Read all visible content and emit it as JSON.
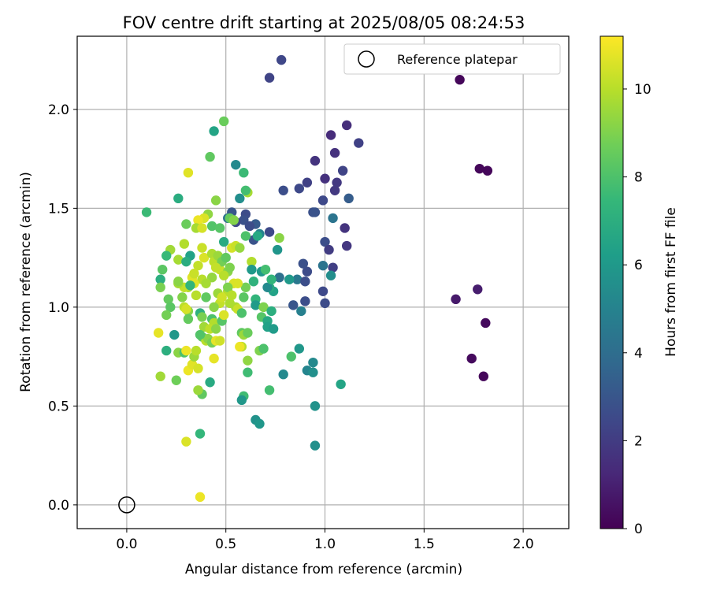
{
  "chart_data": {
    "type": "scatter",
    "title": "FOV centre drift starting at 2025/08/05 08:24:53",
    "xlabel": "Angular distance from reference (arcmin)",
    "ylabel": "Rotation from reference (arcmin)",
    "xlim": [
      -0.25,
      2.23
    ],
    "ylim": [
      -0.12,
      2.37
    ],
    "xticks": [
      "0.0",
      "0.5",
      "1.0",
      "1.5",
      "2.0"
    ],
    "xtick_values": [
      0.0,
      0.5,
      1.0,
      1.5,
      2.0
    ],
    "yticks": [
      "0.0",
      "0.5",
      "1.0",
      "1.5",
      "2.0"
    ],
    "ytick_values": [
      0.0,
      0.5,
      1.0,
      1.5,
      2.0
    ],
    "grid": true,
    "legend_position": "top-right",
    "legend": {
      "label": "Reference platepar"
    },
    "reference_point": {
      "x": 0.0,
      "y": 0.0
    },
    "colorbar": {
      "label": "Hours from first FF file",
      "colormap": "viridis",
      "min": 0,
      "max": 11.2,
      "ticks": [
        "0",
        "2",
        "4",
        "6",
        "8",
        "10"
      ],
      "tick_values": [
        0,
        2,
        4,
        6,
        8,
        10
      ]
    },
    "colormap_stops": [
      "#440154",
      "#482878",
      "#3e4989",
      "#31688e",
      "#26828e",
      "#1f9e89",
      "#35b779",
      "#6ece58",
      "#b5de2b",
      "#fde725"
    ],
    "points": [
      [
        1.68,
        2.15,
        0.2
      ],
      [
        1.78,
        1.7,
        0.2
      ],
      [
        1.82,
        1.69,
        0.2
      ],
      [
        1.74,
        0.74,
        0.3
      ],
      [
        1.8,
        0.65,
        0.2
      ],
      [
        1.81,
        0.92,
        0.3
      ],
      [
        1.66,
        1.04,
        0.8
      ],
      [
        1.77,
        1.09,
        0.9
      ],
      [
        0.78,
        2.25,
        2.4
      ],
      [
        0.72,
        2.16,
        2.3
      ],
      [
        1.11,
        1.92,
        1.5
      ],
      [
        1.17,
        1.83,
        2.2
      ],
      [
        1.03,
        1.87,
        1.4
      ],
      [
        1.05,
        1.78,
        1.6
      ],
      [
        0.95,
        1.74,
        1.7
      ],
      [
        1.09,
        1.69,
        2.3
      ],
      [
        1.0,
        1.65,
        1.6
      ],
      [
        0.91,
        1.63,
        2.2
      ],
      [
        0.87,
        1.6,
        2.5
      ],
      [
        0.79,
        1.59,
        2.7
      ],
      [
        1.06,
        1.63,
        1.9
      ],
      [
        1.05,
        1.59,
        1.9
      ],
      [
        1.12,
        1.55,
        3.3
      ],
      [
        0.99,
        1.54,
        2.5
      ],
      [
        0.94,
        1.48,
        2.8
      ],
      [
        0.95,
        1.48,
        2.9
      ],
      [
        1.1,
        1.4,
        1.7
      ],
      [
        1.04,
        1.45,
        4.3
      ],
      [
        1.0,
        1.33,
        2.7
      ],
      [
        1.02,
        1.29,
        2.0
      ],
      [
        1.11,
        1.31,
        1.8
      ],
      [
        1.04,
        1.2,
        2.1
      ],
      [
        0.99,
        1.21,
        4.3
      ],
      [
        0.91,
        1.18,
        2.6
      ],
      [
        0.89,
        1.22,
        2.8
      ],
      [
        1.03,
        1.16,
        5.5
      ],
      [
        0.86,
        1.14,
        4.5
      ],
      [
        0.9,
        1.13,
        2.7
      ],
      [
        0.82,
        1.14,
        6.0
      ],
      [
        0.99,
        1.08,
        2.5
      ],
      [
        1.0,
        1.02,
        2.6
      ],
      [
        0.9,
        1.03,
        2.7
      ],
      [
        0.84,
        1.01,
        3.0
      ],
      [
        0.88,
        0.98,
        4.9
      ],
      [
        0.77,
        1.15,
        4.1
      ],
      [
        0.74,
        1.08,
        6.4
      ],
      [
        0.72,
        1.1,
        6.9
      ],
      [
        0.71,
        1.1,
        5.3
      ],
      [
        0.72,
        1.38,
        2.5
      ],
      [
        0.76,
        1.29,
        5.8
      ],
      [
        0.67,
        1.37,
        5.0
      ],
      [
        0.65,
        1.42,
        3.2
      ],
      [
        0.64,
        1.34,
        2.9
      ],
      [
        0.6,
        1.47,
        2.6
      ],
      [
        0.59,
        1.44,
        2.8
      ],
      [
        0.62,
        1.41,
        2.6
      ],
      [
        0.53,
        1.48,
        3.0
      ],
      [
        0.55,
        1.43,
        2.4
      ],
      [
        0.51,
        1.45,
        4.2
      ],
      [
        0.57,
        1.55,
        5.5
      ],
      [
        0.55,
        1.72,
        5.3
      ],
      [
        0.59,
        1.68,
        7.6
      ],
      [
        0.61,
        1.58,
        9.7
      ],
      [
        0.6,
        1.59,
        7.8
      ],
      [
        0.49,
        1.94,
        8.6
      ],
      [
        0.44,
        1.89,
        6.5
      ],
      [
        0.42,
        1.76,
        8.4
      ],
      [
        0.31,
        1.68,
        10.7
      ],
      [
        0.26,
        1.55,
        6.9
      ],
      [
        0.1,
        1.48,
        7.6
      ],
      [
        0.45,
        1.54,
        9.2
      ],
      [
        0.41,
        1.47,
        9.3
      ],
      [
        0.39,
        1.45,
        10.6
      ],
      [
        0.36,
        1.44,
        10.9
      ],
      [
        0.3,
        1.42,
        8.6
      ],
      [
        0.35,
        1.4,
        9.7
      ],
      [
        0.38,
        1.4,
        10.5
      ],
      [
        0.43,
        1.41,
        8.1
      ],
      [
        0.47,
        1.4,
        8.2
      ],
      [
        0.52,
        1.45,
        8.5
      ],
      [
        0.54,
        1.44,
        9.1
      ],
      [
        0.49,
        1.33,
        6.8
      ],
      [
        0.6,
        1.36,
        8.0
      ],
      [
        0.66,
        1.36,
        6.7
      ],
      [
        0.68,
        1.18,
        6.0
      ],
      [
        0.7,
        1.19,
        7.8
      ],
      [
        0.77,
        1.35,
        9.2
      ],
      [
        0.73,
        1.14,
        7.3
      ],
      [
        0.22,
        1.29,
        9.6
      ],
      [
        0.26,
        1.24,
        9.7
      ],
      [
        0.29,
        1.32,
        9.9
      ],
      [
        0.2,
        1.26,
        7.5
      ],
      [
        0.32,
        1.26,
        6.4
      ],
      [
        0.3,
        1.23,
        6.9
      ],
      [
        0.36,
        1.21,
        10.2
      ],
      [
        0.38,
        1.3,
        10.3
      ],
      [
        0.39,
        1.25,
        10.6
      ],
      [
        0.43,
        1.27,
        9.8
      ],
      [
        0.44,
        1.23,
        10.1
      ],
      [
        0.46,
        1.26,
        9.5
      ],
      [
        0.47,
        1.19,
        10.3
      ],
      [
        0.48,
        1.23,
        8.8
      ],
      [
        0.51,
        1.18,
        9.2
      ],
      [
        0.49,
        1.16,
        10.0
      ],
      [
        0.53,
        1.3,
        10.5
      ],
      [
        0.55,
        1.31,
        10.3
      ],
      [
        0.57,
        1.3,
        9.4
      ],
      [
        0.63,
        1.23,
        9.9
      ],
      [
        0.63,
        1.19,
        6.0
      ],
      [
        0.64,
        1.13,
        7.2
      ],
      [
        0.6,
        1.1,
        8.8
      ],
      [
        0.54,
        1.12,
        10.6
      ],
      [
        0.56,
        1.12,
        10.6
      ],
      [
        0.51,
        1.08,
        10.0
      ],
      [
        0.52,
        1.02,
        9.8
      ],
      [
        0.46,
        1.07,
        9.5
      ],
      [
        0.47,
        1.02,
        10.2
      ],
      [
        0.44,
        1.0,
        9.2
      ],
      [
        0.4,
        1.05,
        8.4
      ],
      [
        0.38,
        1.14,
        10.0
      ],
      [
        0.33,
        1.15,
        10.7
      ],
      [
        0.34,
        1.12,
        10.7
      ],
      [
        0.31,
        1.1,
        9.9
      ],
      [
        0.29,
        1.1,
        10.2
      ],
      [
        0.26,
        1.12,
        9.7
      ],
      [
        0.28,
        1.05,
        9.1
      ],
      [
        0.32,
        1.11,
        7.3
      ],
      [
        0.35,
        1.06,
        10.0
      ],
      [
        0.18,
        1.19,
        8.3
      ],
      [
        0.17,
        1.14,
        7.0
      ],
      [
        0.17,
        1.1,
        8.9
      ],
      [
        0.21,
        1.04,
        8.5
      ],
      [
        0.22,
        1.0,
        8.3
      ],
      [
        0.2,
        0.96,
        8.8
      ],
      [
        0.29,
        1.0,
        10.1
      ],
      [
        0.31,
        0.98,
        9.2
      ],
      [
        0.31,
        0.94,
        8.5
      ],
      [
        0.3,
        0.99,
        10.5
      ],
      [
        0.37,
        0.97,
        7.1
      ],
      [
        0.38,
        0.95,
        8.9
      ],
      [
        0.39,
        0.9,
        9.6
      ],
      [
        0.43,
        0.94,
        8.0
      ],
      [
        0.44,
        0.92,
        9.9
      ],
      [
        0.42,
        0.89,
        10.1
      ],
      [
        0.45,
        0.89,
        9.2
      ],
      [
        0.48,
        0.93,
        8.2
      ],
      [
        0.49,
        0.96,
        10.6
      ],
      [
        0.55,
        1.0,
        9.8
      ],
      [
        0.56,
        0.99,
        10.3
      ],
      [
        0.58,
        0.97,
        8.0
      ],
      [
        0.59,
        1.05,
        8.3
      ],
      [
        0.65,
        1.04,
        7.3
      ],
      [
        0.65,
        1.01,
        6.1
      ],
      [
        0.68,
        0.95,
        8.2
      ],
      [
        0.69,
        1.0,
        9.0
      ],
      [
        0.71,
        0.93,
        6.7
      ],
      [
        0.73,
        0.98,
        7.0
      ],
      [
        0.71,
        0.9,
        6.4
      ],
      [
        0.74,
        0.89,
        6.1
      ],
      [
        0.58,
        0.87,
        8.4
      ],
      [
        0.59,
        0.86,
        9.5
      ],
      [
        0.61,
        0.87,
        8.6
      ],
      [
        0.58,
        0.8,
        10.0
      ],
      [
        0.57,
        0.8,
        10.9
      ],
      [
        0.61,
        0.73,
        9.3
      ],
      [
        0.61,
        0.67,
        7.7
      ],
      [
        0.67,
        0.78,
        9.0
      ],
      [
        0.69,
        0.79,
        8.0
      ],
      [
        0.83,
        0.75,
        8.0
      ],
      [
        0.87,
        0.79,
        5.9
      ],
      [
        0.91,
        0.68,
        5.1
      ],
      [
        0.94,
        0.67,
        5.6
      ],
      [
        0.94,
        0.72,
        5.3
      ],
      [
        1.08,
        0.61,
        6.5
      ],
      [
        0.79,
        0.66,
        5.3
      ],
      [
        0.72,
        0.58,
        7.8
      ],
      [
        0.59,
        0.55,
        7.7
      ],
      [
        0.58,
        0.53,
        5.9
      ],
      [
        0.65,
        0.43,
        5.7
      ],
      [
        0.67,
        0.41,
        5.9
      ],
      [
        0.95,
        0.5,
        5.7
      ],
      [
        0.95,
        0.3,
        5.6
      ],
      [
        0.37,
        0.36,
        7.4
      ],
      [
        0.38,
        0.56,
        8.4
      ],
      [
        0.36,
        0.58,
        9.5
      ],
      [
        0.31,
        0.68,
        10.9
      ],
      [
        0.33,
        0.71,
        10.7
      ],
      [
        0.36,
        0.69,
        10.5
      ],
      [
        0.34,
        0.75,
        9.5
      ],
      [
        0.42,
        0.62,
        6.8
      ],
      [
        0.44,
        0.74,
        10.8
      ],
      [
        0.38,
        0.85,
        8.4
      ],
      [
        0.4,
        0.83,
        10.0
      ],
      [
        0.41,
        0.84,
        9.2
      ],
      [
        0.43,
        0.82,
        8.8
      ],
      [
        0.45,
        0.83,
        10.8
      ],
      [
        0.47,
        0.83,
        10.4
      ],
      [
        0.37,
        0.86,
        8.1
      ],
      [
        0.24,
        0.86,
        5.9
      ],
      [
        0.2,
        0.78,
        7.0
      ],
      [
        0.26,
        0.77,
        9.2
      ],
      [
        0.29,
        0.77,
        8.0
      ],
      [
        0.3,
        0.78,
        10.9
      ],
      [
        0.25,
        0.63,
        8.7
      ],
      [
        0.17,
        0.65,
        9.6
      ],
      [
        0.16,
        0.87,
        10.8
      ],
      [
        0.35,
        0.78,
        10.0
      ],
      [
        0.3,
        0.32,
        10.6
      ],
      [
        0.37,
        0.04,
        10.9
      ],
      [
        0.51,
        1.1,
        9.0
      ],
      [
        0.48,
        1.05,
        10.4
      ],
      [
        0.53,
        1.06,
        10.0
      ],
      [
        0.26,
        1.13,
        9.2
      ],
      [
        0.43,
        1.15,
        9.4
      ],
      [
        0.45,
        1.2,
        10.2
      ],
      [
        0.34,
        1.17,
        10.3
      ],
      [
        0.4,
        1.12,
        9.7
      ],
      [
        0.5,
        1.25,
        8.4
      ],
      [
        0.52,
        1.2,
        9.0
      ]
    ]
  }
}
